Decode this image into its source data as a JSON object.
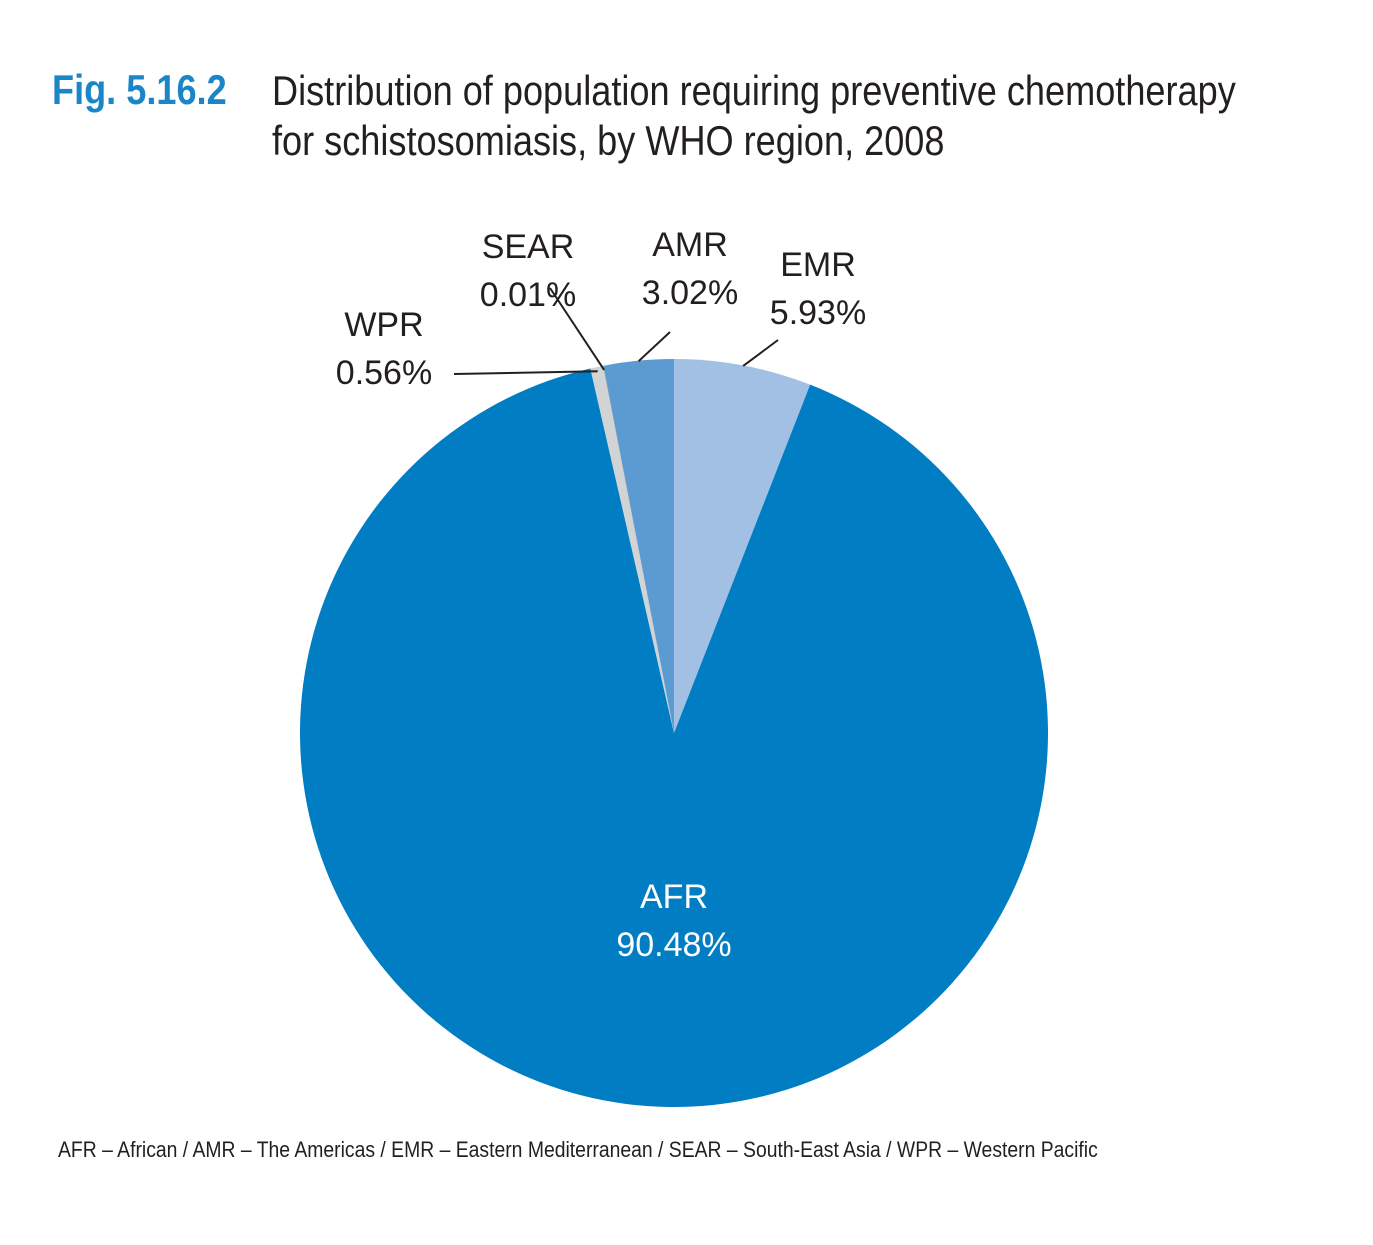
{
  "figure": {
    "number": "Fig. 5.16.2",
    "title_lines": [
      "Distribution of population requiring preventive chemotherapy",
      "for schistosomiasis, by WHO region, 2008"
    ]
  },
  "chart_data": {
    "type": "pie",
    "title": "Distribution of population requiring preventive chemotherapy for schistosomiasis, by WHO region, 2008",
    "slices": [
      {
        "label": "EMR",
        "value_label": "5.93%",
        "value": 5.93,
        "color": "#a2c0e4"
      },
      {
        "label": "AFR",
        "value_label": "90.48%",
        "value": 90.48,
        "color": "#007dc3"
      },
      {
        "label": "WPR",
        "value_label": "0.56%",
        "value": 0.56,
        "color": "#d1d3d4"
      },
      {
        "label": "SEAR",
        "value_label": "0.01%",
        "value": 0.01,
        "color": "#58595b"
      },
      {
        "label": "AMR",
        "value_label": "3.02%",
        "value": 3.02,
        "color": "#5b9bd2"
      }
    ],
    "start_angle": "12 o'clock",
    "direction": "clockwise",
    "legend": "none"
  },
  "footnote": "AFR – African / AMR – The Americas / EMR – Eastern Mediterranean / SEAR – South-East Asia / WPR – Western Pacific"
}
